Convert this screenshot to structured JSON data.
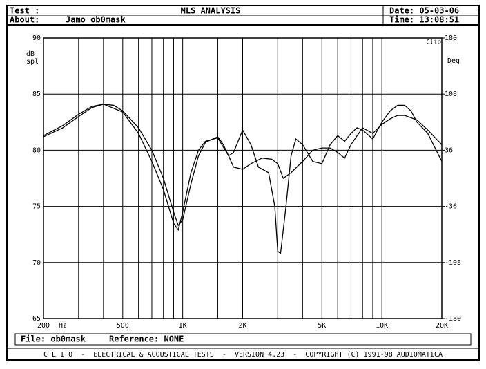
{
  "header": {
    "test_label": "Test :",
    "title": "MLS ANALYSIS",
    "date": "Date: 05-03-06",
    "about_label": "About:",
    "about": "Jamo ob0mask",
    "time": "Time: 13:08:51"
  },
  "chart_data": {
    "type": "line",
    "log_x": true,
    "grid": true,
    "ylabel": [
      "dB",
      "spl"
    ],
    "y2label": "Deg",
    "corner_label": "Clio",
    "x_unit": "Hz",
    "xlim": [
      200,
      20000
    ],
    "xticks": [
      200,
      500,
      {
        "value": 1000,
        "label": "1K"
      },
      {
        "value": 2000,
        "label": "2K"
      },
      {
        "value": 5000,
        "label": "5K"
      },
      {
        "value": 10000,
        "label": "10K"
      },
      {
        "value": 20000,
        "label": "20K"
      }
    ],
    "xgrid": [
      300,
      400,
      600,
      700,
      800,
      900,
      1500,
      3000,
      4000,
      6000,
      7000,
      8000,
      9000
    ],
    "ylim": [
      65,
      90
    ],
    "yticks": [
      90,
      85,
      80,
      75,
      70,
      65
    ],
    "y2lim": [
      -180,
      180
    ],
    "y2ticks": [
      180,
      108,
      36,
      -36,
      -108,
      -180
    ],
    "series": [
      {
        "color": "#000000",
        "x": [
          200,
          250,
          300,
          350,
          400,
          450,
          500,
          600,
          700,
          800,
          900,
          950,
          1000,
          1100,
          1200,
          1300,
          1500,
          1600,
          1700,
          1800,
          2000,
          2200,
          2400,
          2700,
          2900,
          3000,
          3100,
          3300,
          3500,
          3700,
          4000,
          4500,
          5000,
          5500,
          6000,
          6500,
          7000,
          7500,
          8000,
          9000,
          10000,
          11000,
          12000,
          13000,
          14000,
          15000,
          17000,
          20000
        ],
        "values": [
          81.2,
          82,
          83,
          83.8,
          84.1,
          84,
          83.5,
          82,
          80,
          77.5,
          74.5,
          73.3,
          73.8,
          77,
          79.5,
          80.7,
          81.2,
          80.5,
          79.5,
          79.8,
          81.8,
          80.5,
          78.5,
          78,
          75,
          71,
          70.8,
          75,
          79.5,
          81,
          80.5,
          79,
          78.8,
          80.5,
          81.3,
          80.8,
          81.5,
          82,
          81.8,
          81,
          82.5,
          83.5,
          84,
          84,
          83.5,
          82.5,
          81.5,
          79
        ]
      },
      {
        "color": "#000000",
        "x": [
          200,
          250,
          300,
          350,
          400,
          500,
          600,
          700,
          800,
          900,
          950,
          1000,
          1100,
          1200,
          1300,
          1500,
          1700,
          1800,
          2000,
          2200,
          2500,
          2800,
          3000,
          3200,
          3500,
          4000,
          4500,
          5000,
          5500,
          6000,
          6500,
          7000,
          8000,
          9000,
          10000,
          11000,
          12000,
          13000,
          15000,
          17000,
          20000
        ],
        "values": [
          81.3,
          82.2,
          83.2,
          83.9,
          84.1,
          83.4,
          81.5,
          79,
          76.5,
          73.5,
          72.9,
          74.5,
          78,
          80,
          80.8,
          81.1,
          79.5,
          78.5,
          78.3,
          78.8,
          79.3,
          79.2,
          78.8,
          77.5,
          78,
          79,
          80,
          80.2,
          80.2,
          79.8,
          79.3,
          80.5,
          82,
          81.5,
          82.3,
          82.8,
          83.1,
          83.1,
          82.7,
          81.8,
          80.5
        ]
      }
    ]
  },
  "footer": {
    "file": "File: ob0mask",
    "reference": "Reference: NONE",
    "credits": "C L I O  -  ELECTRICAL & ACOUSTICAL TESTS  -  VERSION 4.23  -  COPYRIGHT (C) 1991-98 AUDIOMATICA"
  }
}
